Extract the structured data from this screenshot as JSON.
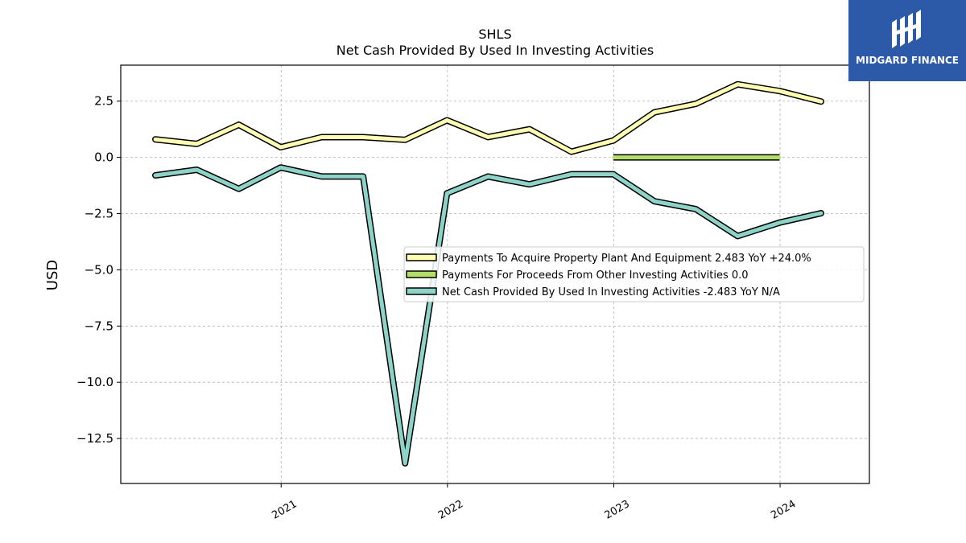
{
  "logo": {
    "text": "MIDGARD FINANCE"
  },
  "chart_data": {
    "type": "line",
    "title": "SHLS",
    "subtitle": "Net Cash Provided By Used In Investing Activities",
    "ylabel": "USD",
    "xlabel": "",
    "x_ticks": [
      "2021",
      "2022",
      "2023",
      "2024"
    ],
    "y_ticks": [
      "2.5",
      "0.0",
      "−2.5",
      "−5.0",
      "−7.5",
      "−10.0",
      "−12.5"
    ],
    "ylim": [
      -14.5,
      4.1
    ],
    "xlim": [
      "2020-01-15",
      "2024-07-15"
    ],
    "grid": true,
    "legend_position": "center-right",
    "colors": {
      "ppe": "#ffffb3",
      "other": "#b3de69",
      "net": "#8dd3c7",
      "outline": "#000000"
    },
    "series": [
      {
        "key": "ppe",
        "name": "Payments To Acquire Property Plant And Equipment  2.483 YoY +24.0%",
        "x": [
          "2020-03-31",
          "2020-06-30",
          "2020-09-30",
          "2020-12-31",
          "2021-03-31",
          "2021-06-30",
          "2021-09-30",
          "2021-12-31",
          "2022-03-31",
          "2022-06-30",
          "2022-09-30",
          "2022-12-31",
          "2023-03-31",
          "2023-06-30",
          "2023-09-30",
          "2023-12-31",
          "2024-03-31"
        ],
        "values": [
          0.8,
          0.6,
          1.45,
          0.45,
          0.9,
          0.9,
          0.78,
          1.65,
          0.9,
          1.25,
          0.25,
          0.75,
          2.0,
          2.38,
          3.25,
          2.95,
          2.483
        ]
      },
      {
        "key": "other",
        "name": "Payments For Proceeds From Other Investing Activities  0.0",
        "x": [
          "2022-12-31",
          "2023-12-31"
        ],
        "values": [
          0.0,
          0.0
        ]
      },
      {
        "key": "net",
        "name": "Net Cash Provided By Used In Investing Activities  -2.483 YoY N/A",
        "x": [
          "2020-03-31",
          "2020-06-30",
          "2020-09-30",
          "2020-12-31",
          "2021-03-31",
          "2021-06-30",
          "2021-09-30",
          "2021-12-31",
          "2022-03-31",
          "2022-06-30",
          "2022-09-30",
          "2022-12-31",
          "2023-03-31",
          "2023-06-30",
          "2023-09-30",
          "2023-12-31",
          "2024-03-31"
        ],
        "values": [
          -0.8,
          -0.55,
          -1.4,
          -0.45,
          -0.85,
          -0.85,
          -13.6,
          -1.6,
          -0.85,
          -1.2,
          -0.75,
          -0.75,
          -1.95,
          -2.3,
          -3.5,
          -2.9,
          -2.483
        ]
      }
    ]
  }
}
